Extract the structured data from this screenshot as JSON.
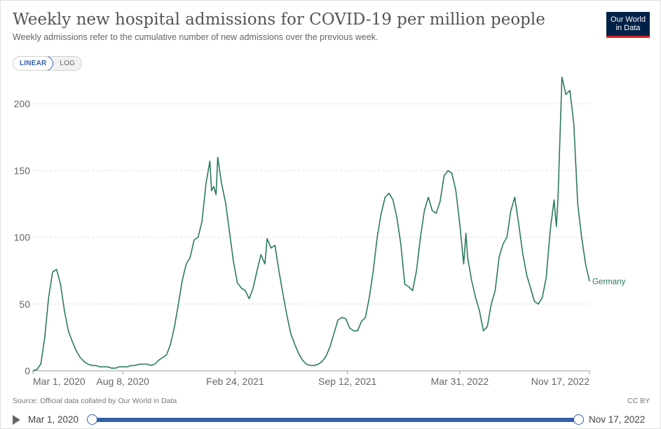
{
  "header": {
    "title": "Weekly new hospital admissions for COVID-19 per million people",
    "subtitle": "Weekly admissions refer to the cumulative number of new admissions over the previous week.",
    "logo_line1": "Our World",
    "logo_line2": "in Data"
  },
  "toggle": {
    "linear_label": "LINEAR",
    "log_label": "LOG",
    "selected": "LINEAR"
  },
  "footer": {
    "source": "Source: Official data collated by Our World in Data",
    "license": "CC BY"
  },
  "timeline": {
    "start_label": "Mar 1, 2020",
    "end_label": "Nov 17, 2022"
  },
  "colors": {
    "series": "#2b7a5c",
    "accent": "#3360a9",
    "grid": "#dddddd",
    "logo_bg": "#002147",
    "logo_stripe": "#ce261e"
  },
  "chart_data": {
    "type": "line",
    "title": "Weekly new hospital admissions for COVID-19 per million people",
    "xlabel": "",
    "ylabel": "",
    "ylim": [
      0,
      220
    ],
    "grid": true,
    "y_ticks": [
      0,
      50,
      100,
      150,
      200
    ],
    "x_ticks": [
      {
        "label": "Mar 1, 2020",
        "date": "2020-03-01"
      },
      {
        "label": "Aug 8, 2020",
        "date": "2020-08-08"
      },
      {
        "label": "Feb 24, 2021",
        "date": "2021-02-24"
      },
      {
        "label": "Sep 12, 2021",
        "date": "2021-09-12"
      },
      {
        "label": "Mar 31, 2022",
        "date": "2022-03-31"
      },
      {
        "label": "Nov 17, 2022",
        "date": "2022-11-17"
      }
    ],
    "xlim": [
      "2020-03-01",
      "2022-11-17"
    ],
    "series": [
      {
        "name": "Germany",
        "points": [
          [
            "2020-03-01",
            0
          ],
          [
            "2020-03-08",
            1
          ],
          [
            "2020-03-15",
            5
          ],
          [
            "2020-03-22",
            25
          ],
          [
            "2020-03-29",
            55
          ],
          [
            "2020-04-05",
            74
          ],
          [
            "2020-04-12",
            76
          ],
          [
            "2020-04-19",
            65
          ],
          [
            "2020-04-26",
            45
          ],
          [
            "2020-05-03",
            30
          ],
          [
            "2020-05-10",
            22
          ],
          [
            "2020-05-17",
            15
          ],
          [
            "2020-05-24",
            10
          ],
          [
            "2020-05-31",
            7
          ],
          [
            "2020-06-07",
            5
          ],
          [
            "2020-06-14",
            4
          ],
          [
            "2020-06-21",
            4
          ],
          [
            "2020-06-28",
            3
          ],
          [
            "2020-07-05",
            3
          ],
          [
            "2020-07-12",
            3
          ],
          [
            "2020-07-19",
            2
          ],
          [
            "2020-07-26",
            2
          ],
          [
            "2020-08-02",
            3
          ],
          [
            "2020-08-09",
            3
          ],
          [
            "2020-08-16",
            3
          ],
          [
            "2020-08-23",
            4
          ],
          [
            "2020-08-30",
            4
          ],
          [
            "2020-09-06",
            5
          ],
          [
            "2020-09-13",
            5
          ],
          [
            "2020-09-20",
            5
          ],
          [
            "2020-09-27",
            4
          ],
          [
            "2020-10-04",
            5
          ],
          [
            "2020-10-11",
            8
          ],
          [
            "2020-10-18",
            10
          ],
          [
            "2020-10-25",
            12
          ],
          [
            "2020-11-01",
            20
          ],
          [
            "2020-11-08",
            33
          ],
          [
            "2020-11-15",
            50
          ],
          [
            "2020-11-22",
            68
          ],
          [
            "2020-11-29",
            80
          ],
          [
            "2020-12-06",
            85
          ],
          [
            "2020-12-13",
            98
          ],
          [
            "2020-12-20",
            100
          ],
          [
            "2020-12-27",
            112
          ],
          [
            "2021-01-03",
            140
          ],
          [
            "2021-01-10",
            157
          ],
          [
            "2021-01-13",
            135
          ],
          [
            "2021-01-17",
            138
          ],
          [
            "2021-01-21",
            132
          ],
          [
            "2021-01-24",
            160
          ],
          [
            "2021-01-31",
            140
          ],
          [
            "2021-02-07",
            126
          ],
          [
            "2021-02-14",
            104
          ],
          [
            "2021-02-21",
            82
          ],
          [
            "2021-02-28",
            66
          ],
          [
            "2021-03-07",
            62
          ],
          [
            "2021-03-14",
            60
          ],
          [
            "2021-03-21",
            54
          ],
          [
            "2021-03-28",
            62
          ],
          [
            "2021-04-04",
            75
          ],
          [
            "2021-04-11",
            87
          ],
          [
            "2021-04-18",
            80
          ],
          [
            "2021-04-22",
            99
          ],
          [
            "2021-04-29",
            92
          ],
          [
            "2021-05-06",
            94
          ],
          [
            "2021-05-13",
            75
          ],
          [
            "2021-05-20",
            58
          ],
          [
            "2021-05-27",
            42
          ],
          [
            "2021-06-03",
            28
          ],
          [
            "2021-06-10",
            20
          ],
          [
            "2021-06-17",
            13
          ],
          [
            "2021-06-24",
            8
          ],
          [
            "2021-07-01",
            5
          ],
          [
            "2021-07-08",
            4
          ],
          [
            "2021-07-15",
            4
          ],
          [
            "2021-07-22",
            5
          ],
          [
            "2021-07-29",
            7
          ],
          [
            "2021-08-05",
            11
          ],
          [
            "2021-08-12",
            18
          ],
          [
            "2021-08-19",
            28
          ],
          [
            "2021-08-26",
            38
          ],
          [
            "2021-09-02",
            40
          ],
          [
            "2021-09-09",
            39
          ],
          [
            "2021-09-16",
            32
          ],
          [
            "2021-09-23",
            30
          ],
          [
            "2021-09-30",
            30
          ],
          [
            "2021-10-07",
            37
          ],
          [
            "2021-10-14",
            40
          ],
          [
            "2021-10-21",
            55
          ],
          [
            "2021-10-28",
            75
          ],
          [
            "2021-11-04",
            100
          ],
          [
            "2021-11-11",
            118
          ],
          [
            "2021-11-18",
            130
          ],
          [
            "2021-11-25",
            133
          ],
          [
            "2021-12-02",
            128
          ],
          [
            "2021-12-09",
            115
          ],
          [
            "2021-12-16",
            95
          ],
          [
            "2021-12-23",
            65
          ],
          [
            "2021-12-30",
            63
          ],
          [
            "2022-01-06",
            60
          ],
          [
            "2022-01-13",
            75
          ],
          [
            "2022-01-20",
            100
          ],
          [
            "2022-01-27",
            120
          ],
          [
            "2022-02-03",
            130
          ],
          [
            "2022-02-10",
            120
          ],
          [
            "2022-02-17",
            118
          ],
          [
            "2022-02-24",
            127
          ],
          [
            "2022-03-03",
            146
          ],
          [
            "2022-03-10",
            150
          ],
          [
            "2022-03-17",
            148
          ],
          [
            "2022-03-24",
            135
          ],
          [
            "2022-03-31",
            110
          ],
          [
            "2022-04-07",
            80
          ],
          [
            "2022-04-11",
            103
          ],
          [
            "2022-04-14",
            85
          ],
          [
            "2022-04-21",
            68
          ],
          [
            "2022-04-28",
            55
          ],
          [
            "2022-05-05",
            45
          ],
          [
            "2022-05-12",
            30
          ],
          [
            "2022-05-19",
            33
          ],
          [
            "2022-05-26",
            50
          ],
          [
            "2022-06-02",
            60
          ],
          [
            "2022-06-09",
            85
          ],
          [
            "2022-06-16",
            95
          ],
          [
            "2022-06-23",
            100
          ],
          [
            "2022-06-30",
            120
          ],
          [
            "2022-07-07",
            130
          ],
          [
            "2022-07-14",
            110
          ],
          [
            "2022-07-21",
            88
          ],
          [
            "2022-07-28",
            72
          ],
          [
            "2022-08-04",
            62
          ],
          [
            "2022-08-11",
            52
          ],
          [
            "2022-08-18",
            50
          ],
          [
            "2022-08-25",
            55
          ],
          [
            "2022-09-01",
            70
          ],
          [
            "2022-09-08",
            105
          ],
          [
            "2022-09-15",
            128
          ],
          [
            "2022-09-19",
            108
          ],
          [
            "2022-09-22",
            130
          ],
          [
            "2022-09-29",
            220
          ],
          [
            "2022-10-06",
            207
          ],
          [
            "2022-10-13",
            210
          ],
          [
            "2022-10-20",
            185
          ],
          [
            "2022-10-27",
            125
          ],
          [
            "2022-11-03",
            100
          ],
          [
            "2022-11-10",
            80
          ],
          [
            "2022-11-17",
            67
          ]
        ]
      }
    ]
  }
}
